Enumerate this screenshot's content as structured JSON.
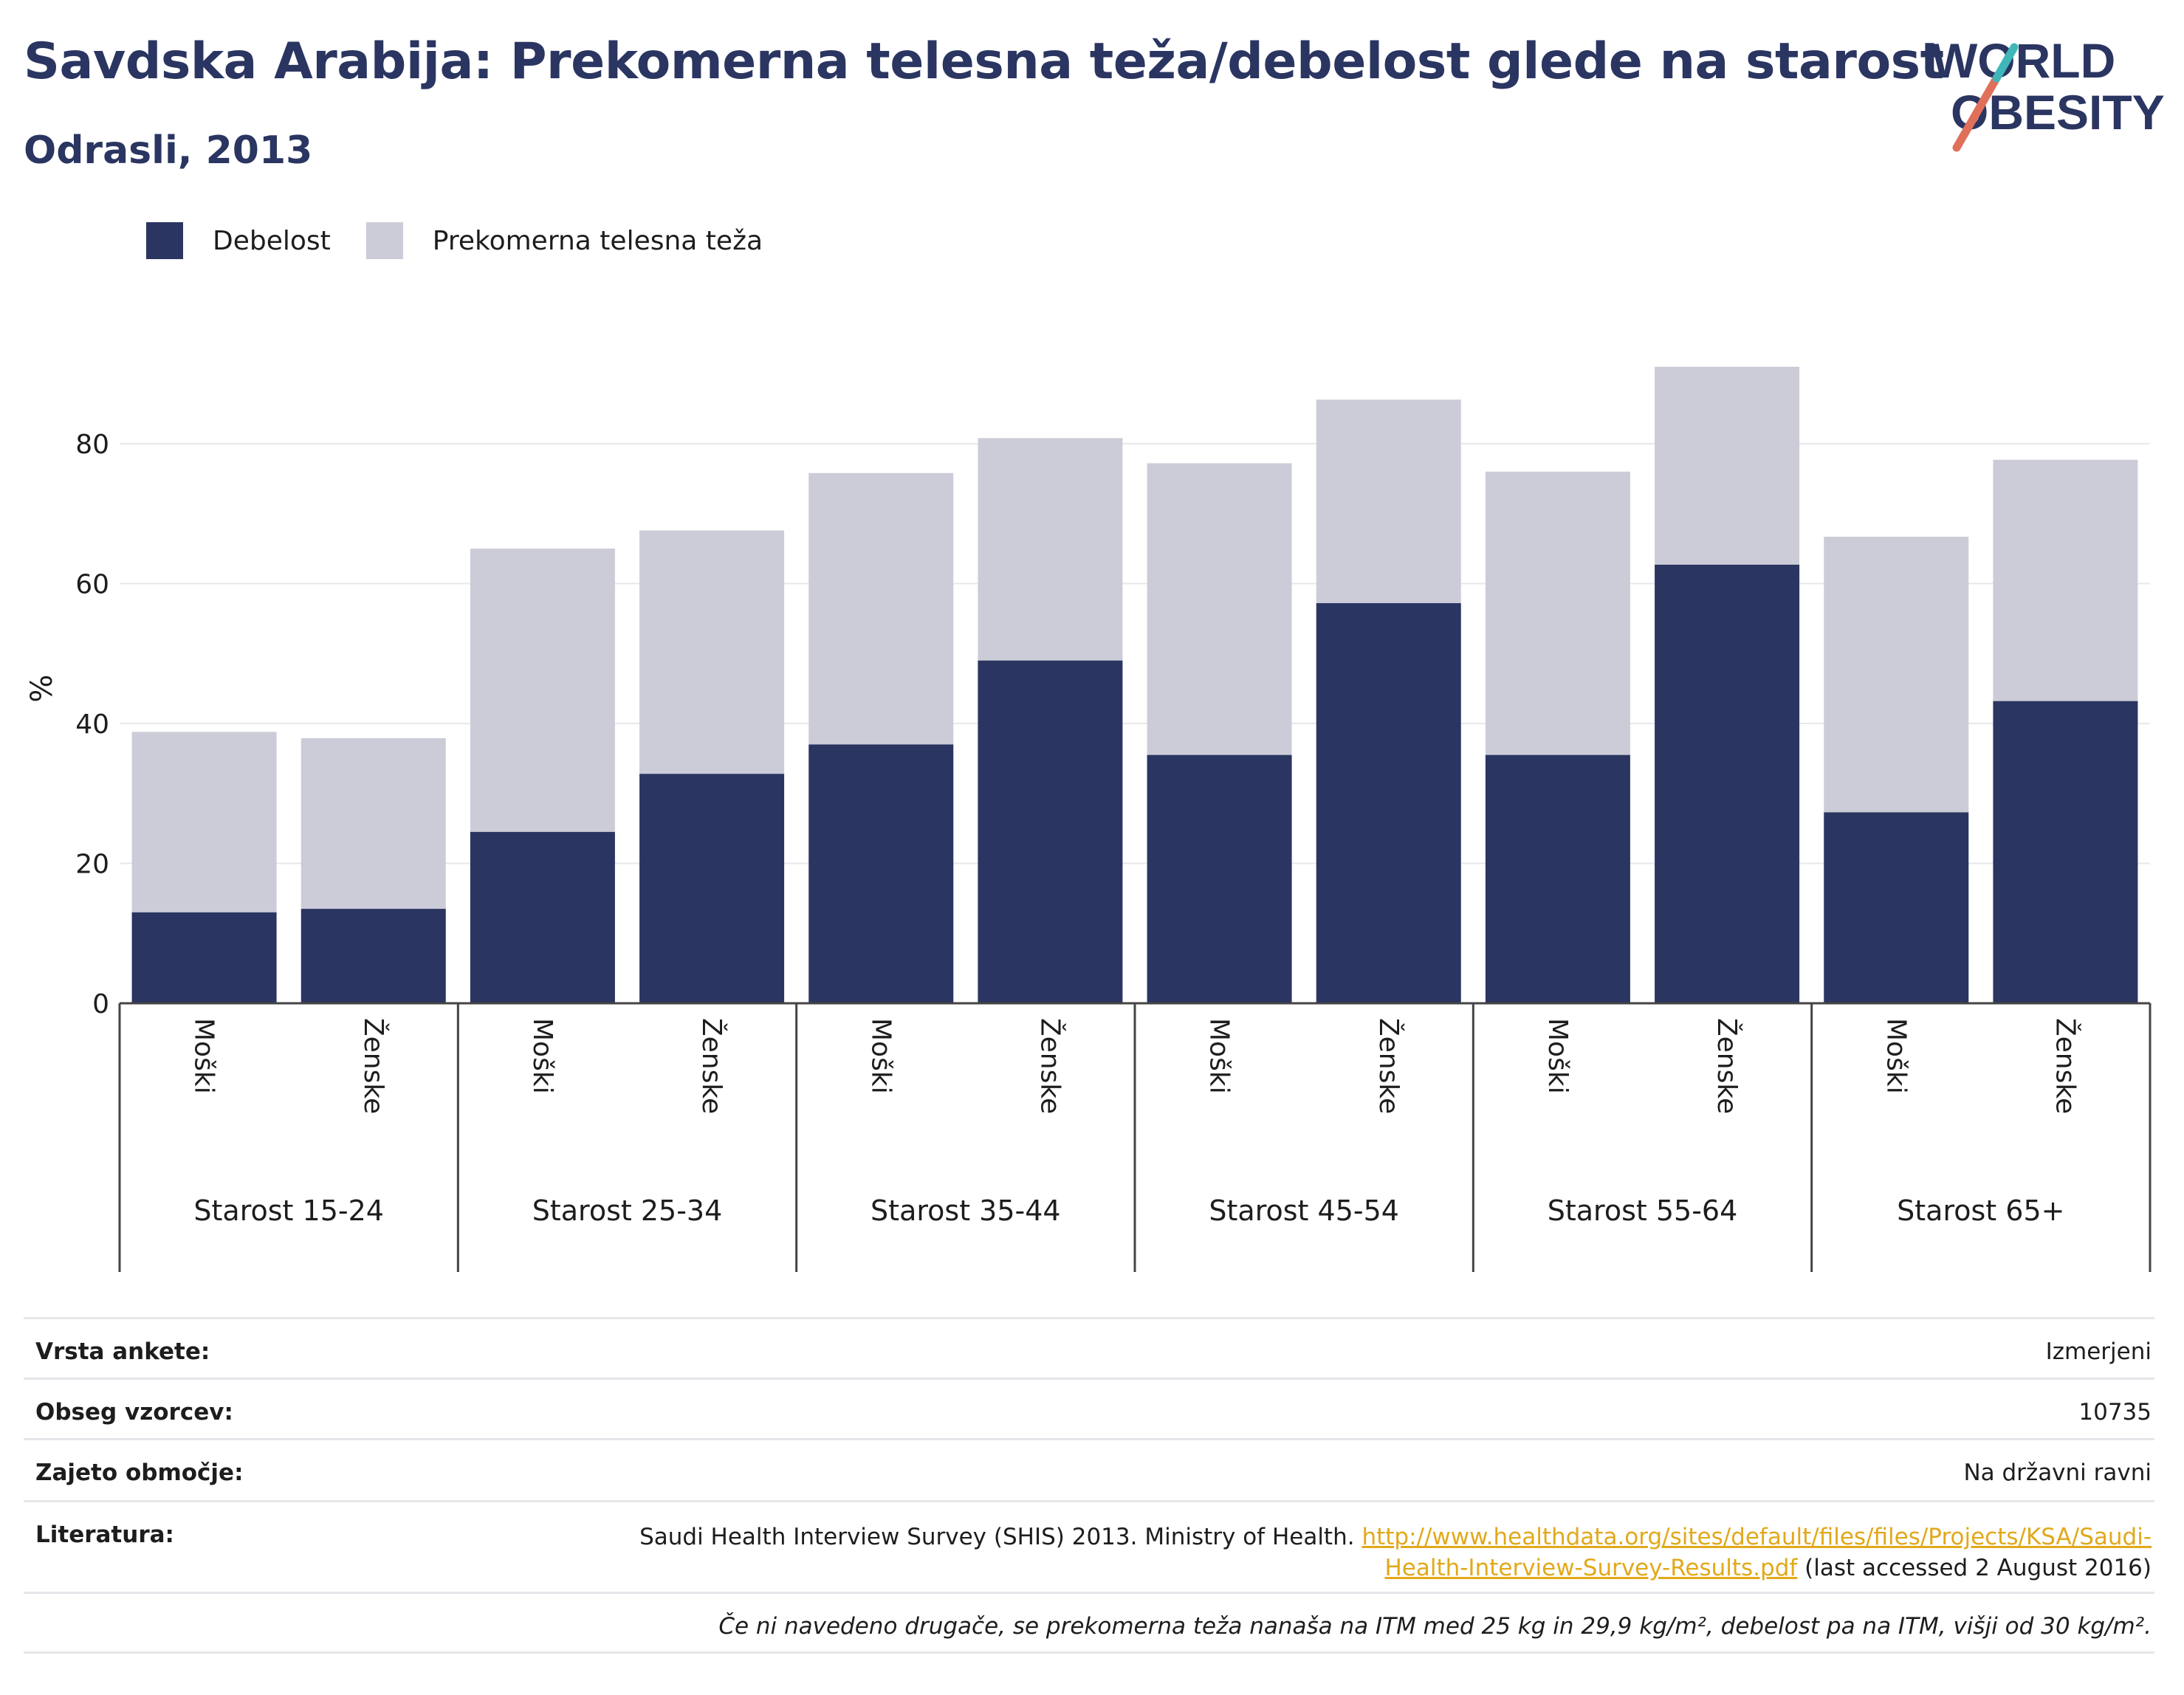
{
  "title": "Savdska Arabija: Prekomerna telesna teža/debelost glede na starost",
  "subtitle": "Odrasli, 2013",
  "logo": {
    "line1": "WORLD",
    "line2": "OBESITY",
    "colors": {
      "text": "#2a3561",
      "slash_red": "#e0705a",
      "slash_teal": "#3fb7b8"
    }
  },
  "colors": {
    "obesity": "#2a3561",
    "overweight": "#cbccd8",
    "grid": "#e8e8ec",
    "axis": "#444444"
  },
  "chart_data": {
    "type": "bar",
    "stacked": true,
    "ylabel": "%",
    "ylim": [
      0,
      95
    ],
    "yticks": [
      0,
      20,
      40,
      60,
      80
    ],
    "grid": true,
    "legend_position": "top-left",
    "groups": [
      "Starost 15-24",
      "Starost 25-34",
      "Starost 35-44",
      "Starost 45-54",
      "Starost 55-64",
      "Starost 65+"
    ],
    "categories": [
      "Moški",
      "Ženske",
      "Moški",
      "Ženske",
      "Moški",
      "Ženske",
      "Moški",
      "Ženske",
      "Moški",
      "Ženske",
      "Moški",
      "Ženske"
    ],
    "series": [
      {
        "name": "Debelost",
        "values": [
          13.0,
          13.5,
          24.5,
          32.8,
          37.0,
          49.0,
          35.5,
          57.2,
          35.5,
          62.7,
          27.3,
          43.2
        ]
      },
      {
        "name": "Prekomerna telesna teža",
        "values": [
          25.8,
          24.4,
          40.5,
          34.8,
          38.8,
          31.8,
          41.7,
          29.1,
          40.5,
          28.3,
          39.4,
          34.5
        ]
      }
    ]
  },
  "info": {
    "survey_type_label": "Vrsta ankete:",
    "survey_type": "Izmerjeni",
    "sample_size_label": "Obseg vzorcev:",
    "sample_size": "10735",
    "area_label": "Zajeto območje:",
    "area": "Na državni ravni",
    "literature_label": "Literatura:",
    "literature_text": "Saudi Health Interview Survey (SHIS) 2013. Ministry of Health. ",
    "literature_url_line1": "http://www.healthdata.org/sites/default/files/files/Projects/KSA/Saudi-",
    "literature_url_line2": "Health-Interview-Survey-Results.pdf",
    "literature_accessed": " (last accessed 2 August 2016)",
    "note": "Če ni navedeno drugače, se prekomerna teža nanaša na ITM med 25 kg in 29,9 kg/m², debelost pa na ITM, višji od 30 kg/m²."
  }
}
